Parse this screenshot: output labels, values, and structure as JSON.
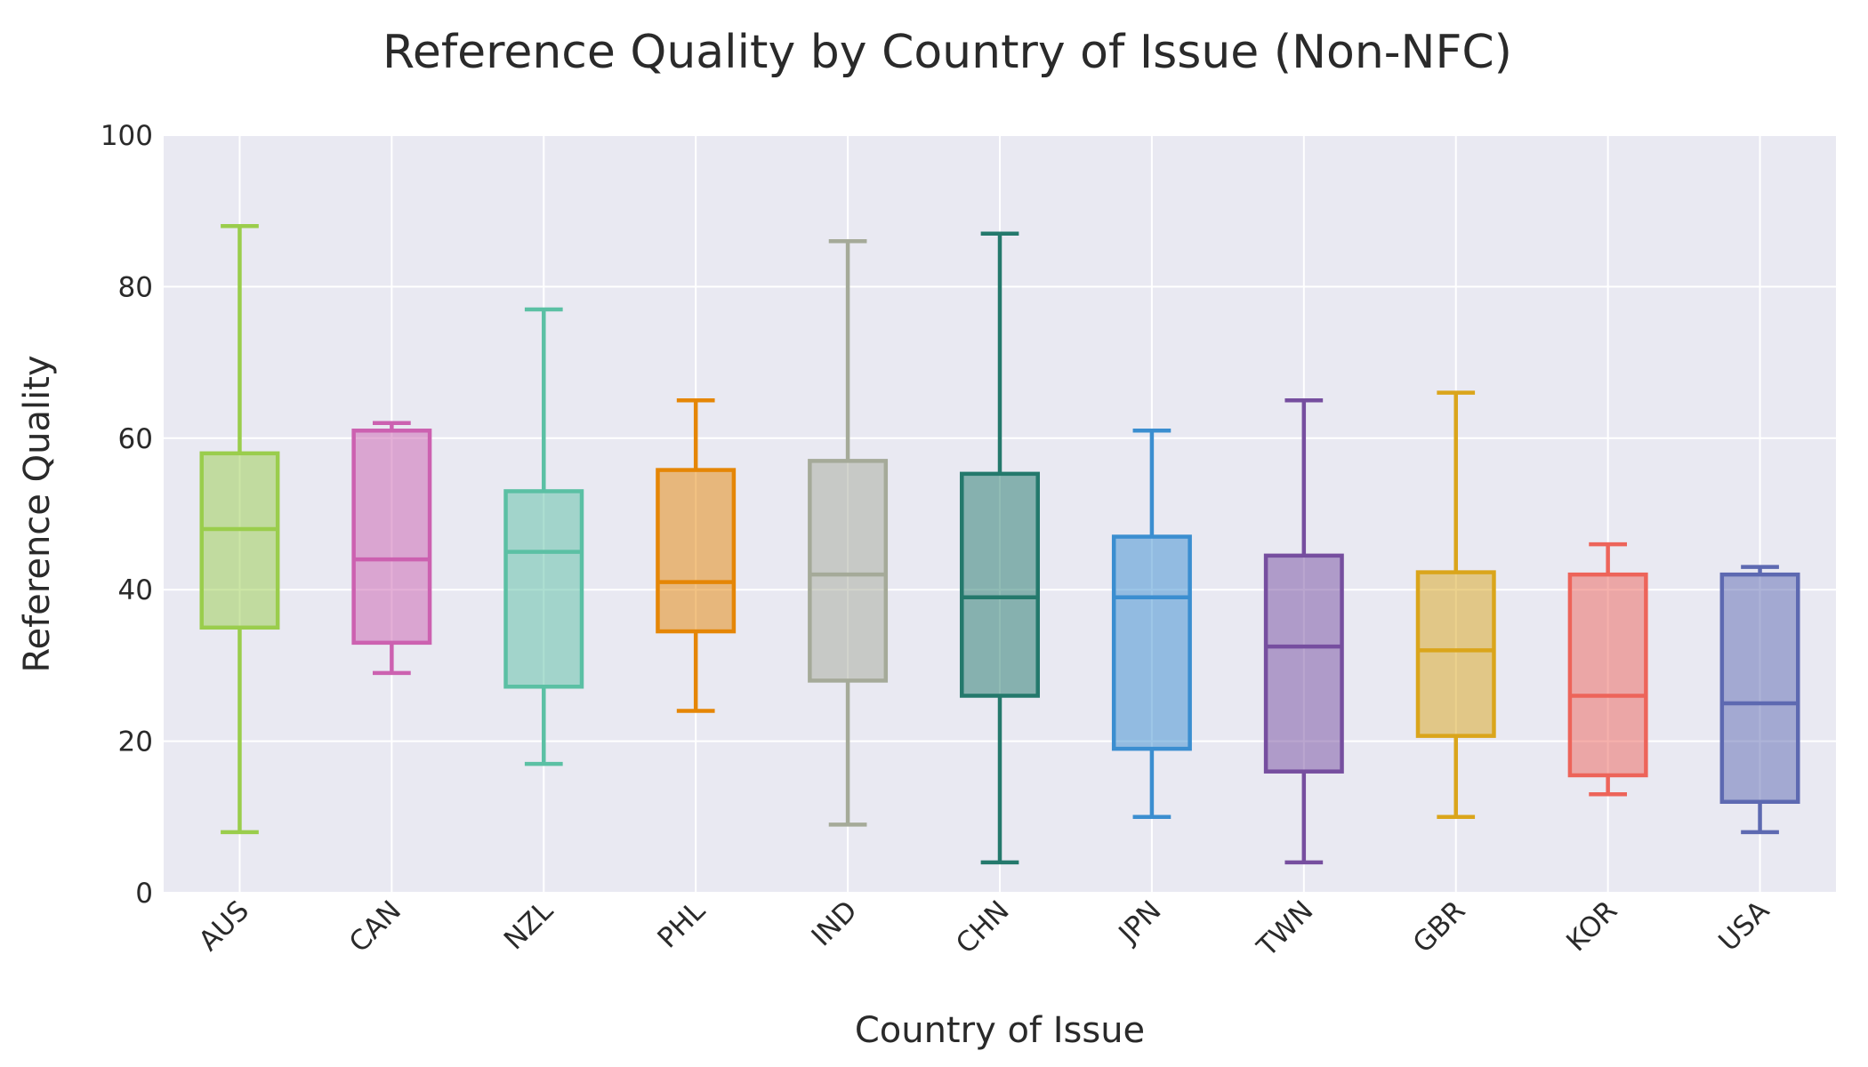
{
  "chart_data": {
    "type": "box",
    "title": "Reference Quality by Country of Issue (Non-NFC)",
    "xlabel": "Country of Issue",
    "ylabel": "Reference Quality",
    "ylim": [
      0,
      100
    ],
    "yticks": [
      "0",
      "20",
      "40",
      "60",
      "80",
      "100"
    ],
    "grid": true,
    "categories": [
      "AUS",
      "CAN",
      "NZL",
      "PHL",
      "IND",
      "CHN",
      "JPN",
      "TWN",
      "GBR",
      "KOR",
      "USA"
    ],
    "series": [
      {
        "name": "AUS",
        "min": 8,
        "q1": 35,
        "median": 48,
        "q3": 58,
        "max": 88,
        "color": "#9acd4c"
      },
      {
        "name": "CAN",
        "min": 29,
        "q1": 33,
        "median": 44,
        "q3": 61,
        "max": 62,
        "color": "#cc61b0"
      },
      {
        "name": "NZL",
        "min": 17,
        "q1": 27.2,
        "median": 45,
        "q3": 53,
        "max": 77,
        "color": "#5bc0a4"
      },
      {
        "name": "PHL",
        "min": 24,
        "q1": 34.5,
        "median": 41,
        "q3": 55.8,
        "max": 65,
        "color": "#e58606"
      },
      {
        "name": "IND",
        "min": 9,
        "q1": 28,
        "median": 42,
        "q3": 57,
        "max": 86,
        "color": "#a5aa99"
      },
      {
        "name": "CHN",
        "min": 4,
        "q1": 26,
        "median": 39,
        "q3": 55.3,
        "max": 87,
        "color": "#24796c"
      },
      {
        "name": "JPN",
        "min": 10,
        "q1": 19,
        "median": 39,
        "q3": 47,
        "max": 61,
        "color": "#3b8ed0"
      },
      {
        "name": "TWN",
        "min": 4,
        "q1": 16,
        "median": 32.5,
        "q3": 44.5,
        "max": 65,
        "color": "#764e9f"
      },
      {
        "name": "GBR",
        "min": 10,
        "q1": 20.7,
        "median": 32,
        "q3": 42.3,
        "max": 66,
        "color": "#daa51b"
      },
      {
        "name": "KOR",
        "min": 13,
        "q1": 15.5,
        "median": 26,
        "q3": 42,
        "max": 46,
        "color": "#ed645a"
      },
      {
        "name": "USA",
        "min": 8,
        "q1": 12,
        "median": 25,
        "q3": 42,
        "max": 43,
        "color": "#5d69b1"
      }
    ],
    "colors": {
      "plot_background": "#e9e9f2",
      "grid": "#ffffff",
      "text": "#2a2a2a"
    }
  }
}
